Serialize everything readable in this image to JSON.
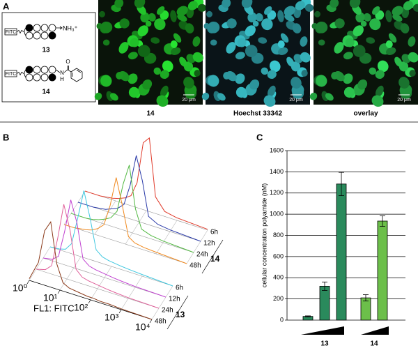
{
  "panel_labels": [
    "A",
    "B",
    "C"
  ],
  "panel_a": {
    "compounds": [
      {
        "label": "13",
        "dye": "FITC",
        "terminus": "NH₃⁺"
      },
      {
        "label": "14",
        "dye": "FITC",
        "atoms": [
          "O",
          "N",
          "H"
        ]
      }
    ],
    "images": [
      {
        "caption": "14",
        "scale_bar": "20 μm"
      },
      {
        "caption": "Hoechst 33342",
        "scale_bar": "20 μm"
      },
      {
        "caption": "overlay",
        "scale_bar": "20 μm"
      }
    ]
  },
  "chart_data": [
    {
      "type": "ridgeline",
      "x_label": "FL1: FITC",
      "x": [
        0,
        0.3,
        0.5,
        0.7,
        0.9,
        1.1,
        1.3,
        1.5,
        1.7,
        1.9,
        2.1,
        2.3,
        2.6,
        3,
        4
      ],
      "xlim": [
        0,
        4
      ],
      "xticks": [
        {
          "value": 0,
          "label": "10⁰"
        },
        {
          "value": 1,
          "label": "10¹"
        },
        {
          "value": 2,
          "label": "10²"
        },
        {
          "value": 3,
          "label": "10³"
        },
        {
          "value": 4,
          "label": "10⁴"
        }
      ],
      "ylim": [
        0,
        100
      ],
      "groups": [
        {
          "name": "13",
          "series": [
            {
              "name": "48h",
              "color": "#8b3a1a",
              "values": [
                2,
                25,
                65,
                78,
                30,
                10,
                6,
                5,
                4,
                3,
                3,
                2,
                2,
                1,
                0
              ]
            },
            {
              "name": "24h",
              "color": "#e0609a",
              "values": [
                0,
                3,
                10,
                45,
                88,
                60,
                15,
                8,
                6,
                5,
                4,
                3,
                2,
                1,
                0
              ]
            },
            {
              "name": "12h",
              "color": "#c040d0",
              "values": [
                0,
                2,
                8,
                40,
                80,
                55,
                14,
                8,
                6,
                5,
                4,
                3,
                2,
                1,
                0
              ]
            },
            {
              "name": "6h",
              "color": "#40c8e0",
              "values": [
                0,
                1,
                3,
                12,
                45,
                80,
                50,
                14,
                8,
                6,
                5,
                4,
                3,
                2,
                0
              ]
            }
          ]
        },
        {
          "name": "14",
          "series": [
            {
              "name": "48h",
              "color": "#f08a20",
              "values": [
                0,
                0,
                1,
                2,
                4,
                8,
                15,
                40,
                76,
                45,
                10,
                5,
                3,
                2,
                0
              ]
            },
            {
              "name": "24h",
              "color": "#50b840",
              "values": [
                0,
                0,
                0,
                1,
                3,
                6,
                10,
                20,
                55,
                80,
                30,
                8,
                4,
                2,
                0
              ]
            },
            {
              "name": "12h",
              "color": "#2a3aa8",
              "values": [
                0,
                0,
                0,
                1,
                2,
                5,
                8,
                15,
                40,
                78,
                50,
                10,
                4,
                2,
                0
              ]
            },
            {
              "name": "6h",
              "color": "#e03a2a",
              "values": [
                0,
                0,
                0,
                1,
                2,
                4,
                7,
                12,
                30,
                80,
                88,
                20,
                6,
                3,
                1
              ]
            }
          ]
        }
      ]
    },
    {
      "type": "bar",
      "y_label": "cellular concentration polyamide (nM)",
      "ylim": [
        0,
        1600
      ],
      "yticks": [
        0,
        200,
        400,
        600,
        800,
        1000,
        1200,
        1400,
        1600
      ],
      "grid": true,
      "series": [
        {
          "name": "13",
          "color": "#2a8a5c",
          "values": [
            35,
            320,
            1285
          ],
          "errors": [
            5,
            40,
            110
          ]
        },
        {
          "name": "14",
          "color": "#6cbf4a",
          "values": [
            210,
            935
          ],
          "errors": [
            30,
            50
          ]
        }
      ]
    }
  ]
}
